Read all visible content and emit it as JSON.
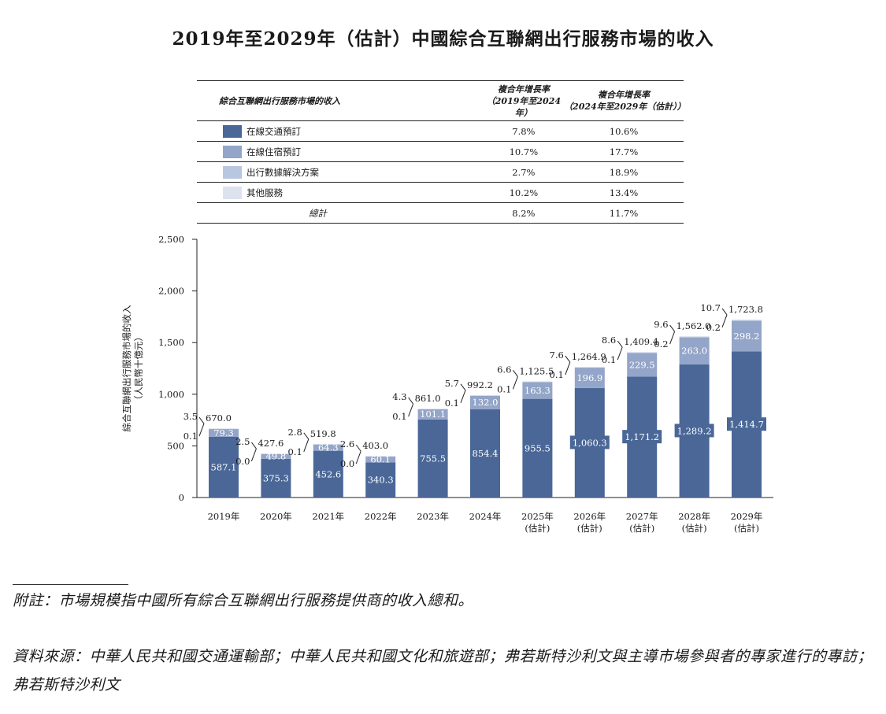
{
  "title": "2019年至2029年（估計）中國綜合互聯網出行服務市場的收入",
  "table": {
    "header_label": "綜合互聯網出行服務市場的收入",
    "col1": {
      "line1": "複合年增長率",
      "line2": "（2019年至2024年）"
    },
    "col2": {
      "line1": "複合年增長率",
      "line2": "（2024年至2029年（估計））"
    },
    "rows": [
      {
        "name": "在線交通預訂",
        "color": "#4a6797",
        "cagr1": "7.8%",
        "cagr2": "10.6%"
      },
      {
        "name": "在線住宿預訂",
        "color": "#93a5c8",
        "cagr1": "10.7%",
        "cagr2": "17.7%"
      },
      {
        "name": "出行數據解決方案",
        "color": "#b8c6e0",
        "cagr1": "2.7%",
        "cagr2": "18.9%"
      },
      {
        "name": "其他服務",
        "color": "#dde3ee",
        "cagr1": "10.2%",
        "cagr2": "13.4%"
      }
    ],
    "total": {
      "name": "總計",
      "cagr1": "8.2%",
      "cagr2": "11.7%"
    }
  },
  "chart_data": {
    "type": "bar",
    "stacked": true,
    "ylabel": "綜合互聯網出行服務市場的收入",
    "ylabel_unit": "（人民幣十億元）",
    "ylim": [
      0,
      2500
    ],
    "yticks": [
      "0",
      "500",
      "1,000",
      "1,500",
      "2,000",
      "2,500"
    ],
    "ytick_values": [
      0,
      500,
      1000,
      1500,
      2000,
      2500
    ],
    "categories": [
      {
        "year": "2019年",
        "sub": ""
      },
      {
        "year": "2020年",
        "sub": ""
      },
      {
        "year": "2021年",
        "sub": ""
      },
      {
        "year": "2022年",
        "sub": ""
      },
      {
        "year": "2023年",
        "sub": ""
      },
      {
        "year": "2024年",
        "sub": ""
      },
      {
        "year": "2025年",
        "sub": "(估計)"
      },
      {
        "year": "2026年",
        "sub": "(估計)"
      },
      {
        "year": "2027年",
        "sub": "(估計)"
      },
      {
        "year": "2028年",
        "sub": "(估計)"
      },
      {
        "year": "2029年",
        "sub": "(估計)"
      }
    ],
    "series": [
      {
        "name": "在線交通預訂",
        "color": "#4a6797",
        "values": [
          587.1,
          375.3,
          452.6,
          340.3,
          755.5,
          854.4,
          955.5,
          1060.3,
          1171.2,
          1289.2,
          1414.7
        ],
        "labels": [
          "587.1",
          "375.3",
          "452.6",
          "340.3",
          "755.5",
          "854.4",
          "955.5",
          "1,060.3",
          "1,171.2",
          "1,289.2",
          "1,414.7"
        ]
      },
      {
        "name": "在線住宿預訂",
        "color": "#93a5c8",
        "values": [
          79.3,
          49.8,
          64.3,
          60.1,
          101.1,
          132.0,
          163.3,
          196.9,
          229.5,
          263.0,
          298.2
        ],
        "labels": [
          "79.3",
          "49.8",
          "64.3",
          "60.1",
          "101.1",
          "132.0",
          "163.3",
          "196.9",
          "229.5",
          "263.0",
          "298.2"
        ]
      },
      {
        "name": "出行數據解決方案",
        "color": "#b8c6e0",
        "values": [
          0.1,
          0.0,
          0.1,
          0.0,
          0.1,
          0.1,
          0.1,
          0.1,
          0.1,
          0.2,
          0.2
        ],
        "labels": [
          "0.1",
          "0.0",
          "0.1",
          "0.0",
          "0.1",
          "0.1",
          "0.1",
          "0.1",
          "0.1",
          "0.2",
          "0.2"
        ]
      },
      {
        "name": "其他服務",
        "color": "#dde3ee",
        "values": [
          3.5,
          2.5,
          2.8,
          2.6,
          4.3,
          5.7,
          6.6,
          7.6,
          8.6,
          9.6,
          10.7
        ],
        "labels": [
          "3.5",
          "2.5",
          "2.8",
          "2.6",
          "4.3",
          "5.7",
          "6.6",
          "7.6",
          "8.6",
          "9.6",
          "10.7"
        ]
      }
    ],
    "totals": [
      670.0,
      427.6,
      519.8,
      403.0,
      861.0,
      992.2,
      1125.5,
      1264.9,
      1409.4,
      1562.0,
      1723.8
    ],
    "total_labels": [
      "670.0",
      "427.6",
      "519.8",
      "403.0",
      "861.0",
      "992.2",
      "1,125.5",
      "1,264.9",
      "1,409.4",
      "1,562.0",
      "1,723.8"
    ]
  },
  "notes": {
    "note": "附註：市場規模指中國所有綜合互聯網出行服務提供商的收入總和。",
    "source": "資料來源：中華人民共和國交通運輸部；中華人民共和國文化和旅遊部；弗若斯特沙利文與主導市場參與者的專家進行的專訪；弗若斯特沙利文"
  }
}
